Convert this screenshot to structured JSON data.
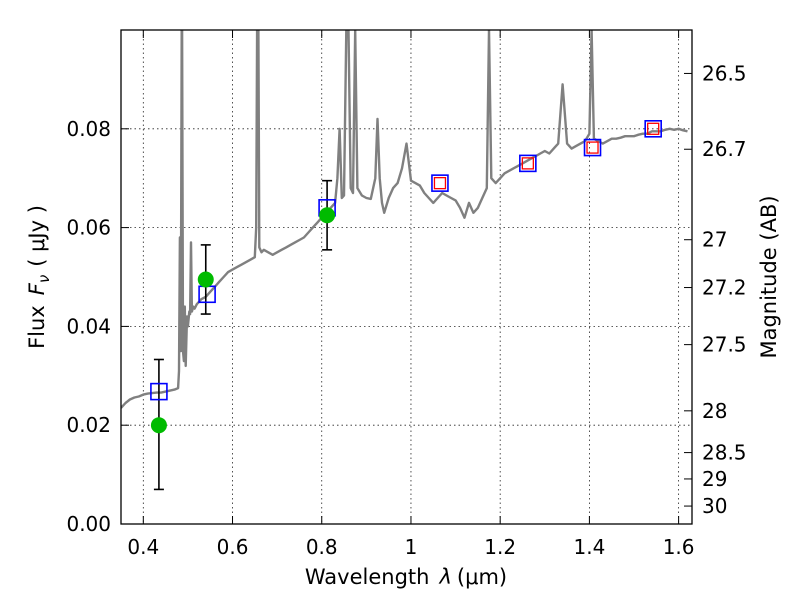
{
  "chart_data": {
    "type": "scatter",
    "xlabel_main": "Wavelength",
    "xlabel_symbol": "λ",
    "xlabel_unit": "(μm)",
    "ylabel_main": "Flux",
    "ylabel_symbol": "F",
    "ylabel_subscript": "ν",
    "ylabel_unit": "( μJy )",
    "y2label": "Magnitude (AB)",
    "xlim": [
      0.35,
      1.63
    ],
    "ylim": [
      0,
      0.1
    ],
    "x_ticks": [
      0.4,
      0.6,
      0.8,
      1.0,
      1.2,
      1.4,
      1.6
    ],
    "x_tick_labels": [
      "0.4",
      "0.6",
      "0.8",
      "1",
      "1.2",
      "1.4",
      "1.6"
    ],
    "y_ticks": [
      0.0,
      0.02,
      0.04,
      0.06,
      0.08
    ],
    "y_tick_labels": [
      "0.00",
      "0.02",
      "0.04",
      "0.06",
      "0.08"
    ],
    "mag_ticks": [
      {
        "mag": 26.5,
        "label": "26.5"
      },
      {
        "mag": 26.7,
        "label": "26.7"
      },
      {
        "mag": 27.0,
        "label": "27"
      },
      {
        "mag": 27.2,
        "label": "27.2"
      },
      {
        "mag": 27.5,
        "label": "27.5"
      },
      {
        "mag": 28.0,
        "label": "28"
      },
      {
        "mag": 28.5,
        "label": "28.5"
      },
      {
        "mag": 29.0,
        "label": "29"
      },
      {
        "mag": 30.0,
        "label": "30"
      }
    ],
    "grid": true,
    "colors": {
      "spectrum": "#808080",
      "observed": "#00bb00",
      "model_blue": "#0000ff",
      "model_red": "#ff0000",
      "errorbar": "#000000"
    },
    "series": [
      {
        "kind": "line",
        "points": [
          [
            0.35,
            0.0235
          ],
          [
            0.36,
            0.0245
          ],
          [
            0.37,
            0.0252
          ],
          [
            0.38,
            0.0256
          ],
          [
            0.39,
            0.0258
          ],
          [
            0.4,
            0.0262
          ],
          [
            0.41,
            0.0264
          ],
          [
            0.42,
            0.0265
          ],
          [
            0.43,
            0.0266
          ],
          [
            0.44,
            0.0266
          ],
          [
            0.45,
            0.0268
          ],
          [
            0.46,
            0.027
          ],
          [
            0.47,
            0.0272
          ],
          [
            0.478,
            0.0275
          ],
          [
            0.48,
            0.031
          ],
          [
            0.482,
            0.058
          ],
          [
            0.484,
            0.035
          ],
          [
            0.486,
            0.1
          ],
          [
            0.487,
            0.1
          ],
          [
            0.489,
            0.035
          ],
          [
            0.491,
            0.033
          ],
          [
            0.493,
            0.044
          ],
          [
            0.495,
            0.032
          ],
          [
            0.498,
            0.042
          ],
          [
            0.5,
            0.04
          ],
          [
            0.503,
            0.043
          ],
          [
            0.505,
            0.0425
          ],
          [
            0.507,
            0.057
          ],
          [
            0.509,
            0.043
          ],
          [
            0.512,
            0.044
          ],
          [
            0.515,
            0.0436
          ],
          [
            0.52,
            0.0445
          ],
          [
            0.525,
            0.045
          ],
          [
            0.53,
            0.0455
          ],
          [
            0.54,
            0.046
          ],
          [
            0.55,
            0.047
          ],
          [
            0.56,
            0.048
          ],
          [
            0.57,
            0.049
          ],
          [
            0.58,
            0.05
          ],
          [
            0.59,
            0.051
          ],
          [
            0.6,
            0.0515
          ],
          [
            0.61,
            0.052
          ],
          [
            0.62,
            0.0525
          ],
          [
            0.63,
            0.053
          ],
          [
            0.64,
            0.0535
          ],
          [
            0.65,
            0.054
          ],
          [
            0.653,
            0.06
          ],
          [
            0.655,
            0.1
          ],
          [
            0.658,
            0.1
          ],
          [
            0.66,
            0.056
          ],
          [
            0.665,
            0.055
          ],
          [
            0.67,
            0.0555
          ],
          [
            0.68,
            0.055
          ],
          [
            0.69,
            0.0545
          ],
          [
            0.7,
            0.055
          ],
          [
            0.71,
            0.0555
          ],
          [
            0.72,
            0.056
          ],
          [
            0.73,
            0.0565
          ],
          [
            0.74,
            0.057
          ],
          [
            0.75,
            0.0575
          ],
          [
            0.76,
            0.058
          ],
          [
            0.77,
            0.059
          ],
          [
            0.78,
            0.06
          ],
          [
            0.79,
            0.061
          ],
          [
            0.8,
            0.062
          ],
          [
            0.81,
            0.063
          ],
          [
            0.82,
            0.064
          ],
          [
            0.83,
            0.065
          ],
          [
            0.835,
            0.07
          ],
          [
            0.84,
            0.08
          ],
          [
            0.845,
            0.066
          ],
          [
            0.85,
            0.0665
          ],
          [
            0.855,
            0.1
          ],
          [
            0.86,
            0.1
          ],
          [
            0.865,
            0.068
          ],
          [
            0.87,
            0.067
          ],
          [
            0.875,
            0.1
          ],
          [
            0.88,
            0.068
          ],
          [
            0.89,
            0.0665
          ],
          [
            0.9,
            0.066
          ],
          [
            0.91,
            0.0658
          ],
          [
            0.92,
            0.07
          ],
          [
            0.925,
            0.082
          ],
          [
            0.93,
            0.07
          ],
          [
            0.935,
            0.065
          ],
          [
            0.94,
            0.063
          ],
          [
            0.95,
            0.066
          ],
          [
            0.96,
            0.068
          ],
          [
            0.97,
            0.069
          ],
          [
            0.98,
            0.072
          ],
          [
            0.99,
            0.077
          ],
          [
            1.0,
            0.0695
          ],
          [
            1.01,
            0.069
          ],
          [
            1.02,
            0.0685
          ],
          [
            1.03,
            0.067
          ],
          [
            1.04,
            0.066
          ],
          [
            1.05,
            0.065
          ],
          [
            1.06,
            0.066
          ],
          [
            1.07,
            0.067
          ],
          [
            1.08,
            0.0665
          ],
          [
            1.09,
            0.066
          ],
          [
            1.1,
            0.0655
          ],
          [
            1.11,
            0.064
          ],
          [
            1.12,
            0.062
          ],
          [
            1.13,
            0.065
          ],
          [
            1.14,
            0.063
          ],
          [
            1.15,
            0.064
          ],
          [
            1.16,
            0.066
          ],
          [
            1.17,
            0.068
          ],
          [
            1.175,
            0.1
          ],
          [
            1.18,
            0.07
          ],
          [
            1.19,
            0.069
          ],
          [
            1.2,
            0.07
          ],
          [
            1.21,
            0.071
          ],
          [
            1.22,
            0.0715
          ],
          [
            1.23,
            0.072
          ],
          [
            1.24,
            0.0725
          ],
          [
            1.25,
            0.073
          ],
          [
            1.26,
            0.0735
          ],
          [
            1.27,
            0.074
          ],
          [
            1.28,
            0.0745
          ],
          [
            1.29,
            0.075
          ],
          [
            1.3,
            0.0755
          ],
          [
            1.31,
            0.075
          ],
          [
            1.32,
            0.076
          ],
          [
            1.33,
            0.077
          ],
          [
            1.34,
            0.089
          ],
          [
            1.35,
            0.077
          ],
          [
            1.36,
            0.076
          ],
          [
            1.37,
            0.0765
          ],
          [
            1.38,
            0.077
          ],
          [
            1.39,
            0.0775
          ],
          [
            1.4,
            0.079
          ],
          [
            1.405,
            0.1
          ],
          [
            1.41,
            0.078
          ],
          [
            1.42,
            0.0775
          ],
          [
            1.43,
            0.077
          ],
          [
            1.44,
            0.0775
          ],
          [
            1.45,
            0.078
          ],
          [
            1.46,
            0.078
          ],
          [
            1.47,
            0.0782
          ],
          [
            1.48,
            0.0785
          ],
          [
            1.49,
            0.0785
          ],
          [
            1.5,
            0.0785
          ],
          [
            1.51,
            0.0788
          ],
          [
            1.52,
            0.079
          ],
          [
            1.53,
            0.079
          ],
          [
            1.54,
            0.0795
          ],
          [
            1.55,
            0.0795
          ],
          [
            1.56,
            0.0795
          ],
          [
            1.57,
            0.0798
          ],
          [
            1.58,
            0.08
          ],
          [
            1.59,
            0.0798
          ],
          [
            1.6,
            0.08
          ],
          [
            1.61,
            0.0797
          ],
          [
            1.62,
            0.0795
          ]
        ]
      },
      {
        "kind": "errorbar",
        "points": [
          {
            "x": 0.435,
            "y": 0.02,
            "yerr": [
              0.013,
              0.0133
            ]
          },
          {
            "x": 0.54,
            "y": 0.0495,
            "yerr": [
              0.007,
              0.007
            ]
          },
          {
            "x": 0.812,
            "y": 0.0625,
            "yerr": [
              0.007,
              0.007
            ]
          }
        ]
      },
      {
        "kind": "open-square",
        "points": [
          [
            0.435,
            0.0268
          ],
          [
            0.543,
            0.0465
          ],
          [
            0.812,
            0.064
          ],
          [
            1.065,
            0.069
          ],
          [
            1.262,
            0.073
          ],
          [
            1.407,
            0.0762
          ],
          [
            1.543,
            0.08
          ]
        ]
      },
      {
        "kind": "small-square",
        "points": [
          [
            1.065,
            0.069
          ],
          [
            1.262,
            0.073
          ],
          [
            1.407,
            0.0762
          ],
          [
            1.543,
            0.08
          ]
        ]
      }
    ]
  }
}
